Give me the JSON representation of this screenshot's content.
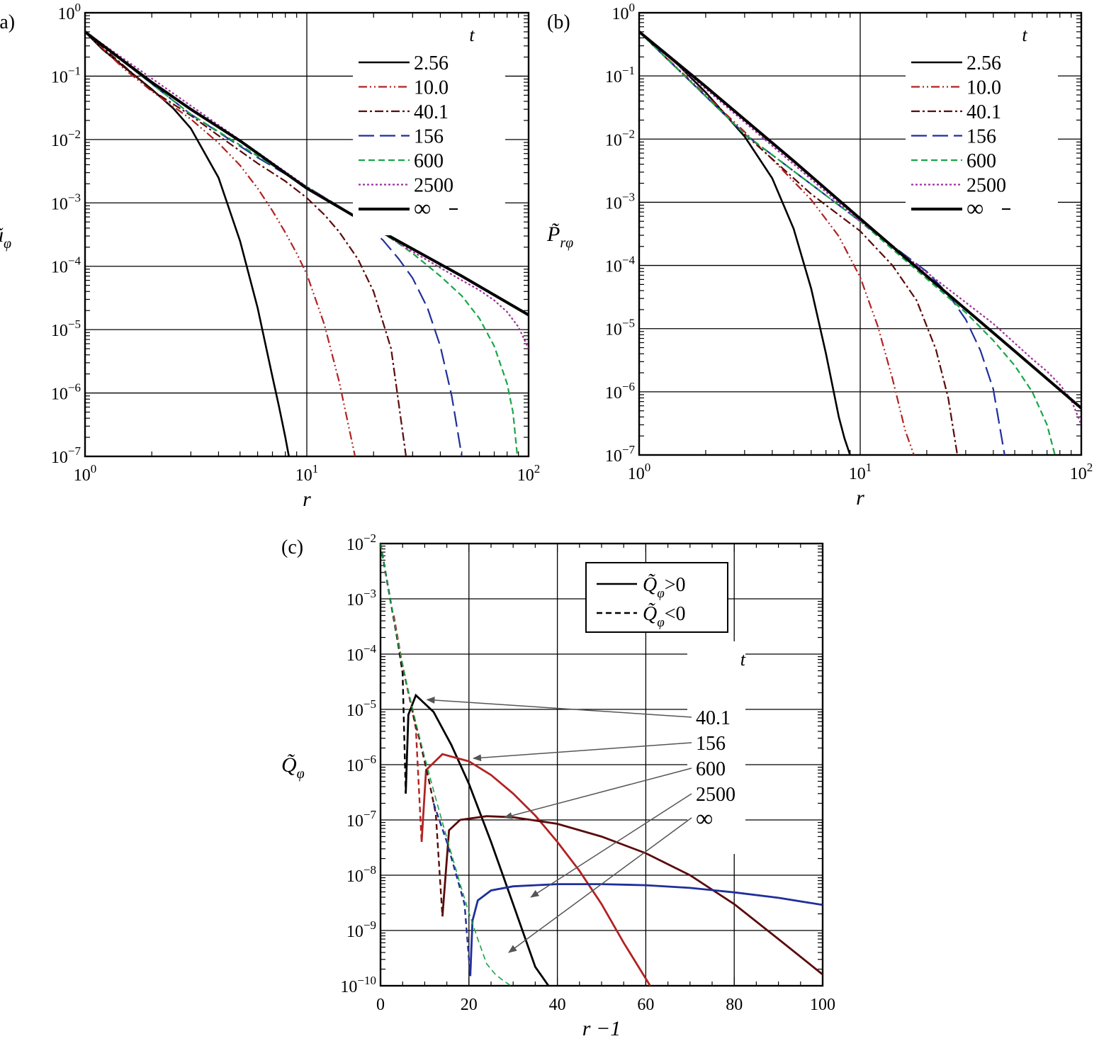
{
  "chart_data": [
    {
      "panel": "(a)",
      "type": "line",
      "xlabel": "r",
      "ylabel": "ũ",
      "ylabel_sub": "φ",
      "xscale": "log",
      "yscale": "log",
      "xlim": [
        1,
        100
      ],
      "ylim": [
        1e-07,
        1
      ],
      "xticks": [
        {
          "v": 1,
          "base": "10",
          "exp": "0"
        },
        {
          "v": 10,
          "base": "10",
          "exp": "1"
        },
        {
          "v": 100,
          "base": "10",
          "exp": "2"
        }
      ],
      "yticks": [
        {
          "v": 1,
          "base": "10",
          "exp": "0"
        },
        {
          "v": 0.1,
          "base": "10",
          "exp": "−1"
        },
        {
          "v": 0.01,
          "base": "10",
          "exp": "−2"
        },
        {
          "v": 0.001,
          "base": "10",
          "exp": "−3"
        },
        {
          "v": 0.0001,
          "base": "10",
          "exp": "−4"
        },
        {
          "v": 1e-05,
          "base": "10",
          "exp": "−5"
        },
        {
          "v": 1e-06,
          "base": "10",
          "exp": "−6"
        },
        {
          "v": 1e-07,
          "base": "10",
          "exp": "−7"
        }
      ],
      "grid": true,
      "legend": {
        "title": "t",
        "position": "top-right"
      },
      "series": [
        {
          "name": "2.56",
          "color": "#000000",
          "style": "solid",
          "width": 2.6,
          "x": [
            1,
            1.2,
            1.5,
            2,
            2.5,
            3,
            4,
            5,
            6,
            7,
            7.5,
            8,
            8.3
          ],
          "y": [
            0.5,
            0.265,
            0.14,
            0.062,
            0.031,
            0.015,
            0.0025,
            0.00025,
            2.2e-05,
            1.8e-06,
            6e-07,
            2e-07,
            1e-07
          ]
        },
        {
          "name": "10.0",
          "color": "#b22222",
          "style": "dashdotdot",
          "width": 2.2,
          "x": [
            1,
            1.5,
            2,
            3,
            4,
            5,
            6,
            7,
            8,
            9,
            10,
            12,
            14,
            16.5
          ],
          "y": [
            0.5,
            0.13,
            0.058,
            0.021,
            0.0088,
            0.0039,
            0.0017,
            0.00075,
            0.00034,
            0.00016,
            7.5e-05,
            1.2e-05,
            1.5e-06,
            1e-07
          ]
        },
        {
          "name": "40.1",
          "color": "#5a0a0a",
          "style": "dashdot",
          "width": 2.2,
          "x": [
            1,
            2,
            3,
            4,
            6,
            8,
            10,
            12,
            14,
            17,
            20,
            24,
            28
          ],
          "y": [
            0.5,
            0.06,
            0.024,
            0.0115,
            0.0042,
            0.0022,
            0.0012,
            0.00065,
            0.00035,
            0.00013,
            4e-05,
            5e-06,
            1e-07
          ]
        },
        {
          "name": "156",
          "color": "#1f2f9a",
          "style": "longdash",
          "width": 2.2,
          "x": [
            1,
            3,
            6,
            10,
            14,
            18,
            22,
            26,
            30,
            35,
            40,
            45,
            50
          ],
          "y": [
            0.5,
            0.025,
            0.0052,
            0.0018,
            0.00088,
            0.00048,
            0.00026,
            0.00013,
            6.5e-05,
            2.2e-05,
            5.5e-06,
            9e-07,
            1e-07
          ]
        },
        {
          "name": "600",
          "color": "#1aa54a",
          "style": "dash",
          "width": 2.2,
          "x": [
            1,
            3,
            10,
            20,
            25,
            30,
            40,
            50,
            60,
            70,
            80,
            85,
            89
          ],
          "y": [
            0.5,
            0.025,
            0.0018,
            0.00041,
            0.00025,
            0.00016,
            7e-05,
            3.4e-05,
            1.5e-05,
            5.5e-06,
            1.4e-06,
            5e-07,
            1e-07
          ]
        },
        {
          "name": "2500",
          "color": "#a0309c",
          "style": "dot",
          "width": 2.2,
          "x": [
            1,
            10,
            30,
            50,
            60,
            70,
            80,
            90,
            100
          ],
          "y": [
            0.5,
            0.0018,
            0.00017,
            6e-05,
            4.2e-05,
            2.9e-05,
            1.9e-05,
            1.1e-05,
            5e-06
          ]
        },
        {
          "name": "∞",
          "color": "#000000",
          "style": "solid",
          "width": 4,
          "x": [
            1,
            1.5,
            2,
            3,
            5,
            10,
            20,
            50,
            100
          ],
          "y": [
            0.5,
            0.17,
            0.08,
            0.03,
            0.0095,
            0.0017,
            0.00041,
            7e-05,
            1.7e-05
          ]
        }
      ]
    },
    {
      "panel": "(b)",
      "type": "line",
      "xlabel": "r",
      "ylabel": "P̃",
      "ylabel_sub": "rφ",
      "xscale": "log",
      "yscale": "log",
      "xlim": [
        1,
        100
      ],
      "ylim": [
        1e-07,
        1
      ],
      "xticks": [
        {
          "v": 1,
          "base": "10",
          "exp": "0"
        },
        {
          "v": 10,
          "base": "10",
          "exp": "1"
        },
        {
          "v": 100,
          "base": "10",
          "exp": "2"
        }
      ],
      "yticks": [
        {
          "v": 1,
          "base": "10",
          "exp": "0"
        },
        {
          "v": 0.1,
          "base": "10",
          "exp": "−1"
        },
        {
          "v": 0.01,
          "base": "10",
          "exp": "−2"
        },
        {
          "v": 0.001,
          "base": "10",
          "exp": "−3"
        },
        {
          "v": 0.0001,
          "base": "10",
          "exp": "−4"
        },
        {
          "v": 1e-05,
          "base": "10",
          "exp": "−5"
        },
        {
          "v": 1e-06,
          "base": "10",
          "exp": "−6"
        },
        {
          "v": 1e-07,
          "base": "10",
          "exp": "−7"
        }
      ],
      "grid": true,
      "legend": {
        "title": "t",
        "position": "top-right"
      },
      "series": [
        {
          "name": "2.56",
          "color": "#000000",
          "style": "solid",
          "width": 2.6,
          "x": [
            1,
            1.5,
            2,
            3,
            4,
            5,
            6,
            7,
            8,
            8.5,
            9
          ],
          "y": [
            0.5,
            0.15,
            0.055,
            0.011,
            0.0024,
            0.00038,
            4.3e-05,
            4e-06,
            4e-07,
            1.8e-07,
            1e-07
          ]
        },
        {
          "name": "10.0",
          "color": "#b22222",
          "style": "dashdotdot",
          "width": 2.2,
          "x": [
            1,
            2,
            3,
            4,
            6,
            8,
            10,
            12,
            14,
            16,
            17.5
          ],
          "y": [
            0.5,
            0.05,
            0.013,
            0.0048,
            0.0011,
            0.00029,
            6.5e-05,
            1.1e-05,
            1.6e-06,
            2.4e-07,
            1e-07
          ]
        },
        {
          "name": "40.1",
          "color": "#5a0a0a",
          "style": "dashdot",
          "width": 2.2,
          "x": [
            1,
            3,
            6,
            10,
            14,
            18,
            22,
            25,
            27.5
          ],
          "y": [
            0.5,
            0.012,
            0.00135,
            0.00035,
            0.0001,
            2.8e-05,
            4.7e-06,
            8e-07,
            1e-07
          ]
        },
        {
          "name": "156",
          "color": "#1f2f9a",
          "style": "longdash",
          "width": 2.2,
          "x": [
            1,
            3,
            10,
            20,
            25,
            30,
            35,
            40,
            45
          ],
          "y": [
            0.5,
            0.012,
            0.0005,
            8e-05,
            3.5e-05,
            1.4e-05,
            4.5e-06,
            1.1e-06,
            1e-07
          ]
        },
        {
          "name": "600",
          "color": "#1aa54a",
          "style": "dash",
          "width": 2.2,
          "x": [
            1,
            3,
            10,
            30,
            40,
            50,
            60,
            70,
            76
          ],
          "y": [
            0.5,
            0.012,
            0.0005,
            1.8e-05,
            6.5e-06,
            2.6e-06,
            1e-06,
            3e-07,
            1e-07
          ]
        },
        {
          "name": "2500",
          "color": "#a0309c",
          "style": "dot",
          "width": 2.2,
          "x": [
            1,
            10,
            40,
            60,
            70,
            80,
            90,
            100
          ],
          "y": [
            0.5,
            0.0005,
            1.2e-05,
            3.3e-06,
            2.1e-06,
            1.3e-06,
            7.5e-07,
            3e-07
          ]
        },
        {
          "name": "∞",
          "color": "#000000",
          "style": "solid",
          "width": 4,
          "x": [
            1,
            2,
            5,
            10,
            20,
            50,
            100
          ],
          "y": [
            0.5,
            0.068,
            0.0045,
            0.00055,
            6.8e-05,
            4.4e-06,
            5.5e-07
          ]
        }
      ]
    },
    {
      "panel": "(c)",
      "type": "line",
      "xlabel": "r −1",
      "ylabel": "Q̃",
      "ylabel_sub": "φ",
      "xscale": "linear",
      "yscale": "log",
      "xlim": [
        0,
        100
      ],
      "ylim": [
        1e-10,
        0.01
      ],
      "xticks": [
        {
          "v": 0,
          "label": "0"
        },
        {
          "v": 20,
          "label": "20"
        },
        {
          "v": 40,
          "label": "40"
        },
        {
          "v": 60,
          "label": "60"
        },
        {
          "v": 80,
          "label": "80"
        },
        {
          "v": 100,
          "label": "100"
        }
      ],
      "yticks": [
        {
          "v": 0.01,
          "base": "10",
          "exp": "−2"
        },
        {
          "v": 0.001,
          "base": "10",
          "exp": "−3"
        },
        {
          "v": 0.0001,
          "base": "10",
          "exp": "−4"
        },
        {
          "v": 1e-05,
          "base": "10",
          "exp": "−5"
        },
        {
          "v": 1e-06,
          "base": "10",
          "exp": "−6"
        },
        {
          "v": 1e-07,
          "base": "10",
          "exp": "−7"
        },
        {
          "v": 1e-08,
          "base": "10",
          "exp": "−8"
        },
        {
          "v": 1e-09,
          "base": "10",
          "exp": "−9"
        },
        {
          "v": 1e-10,
          "base": "10",
          "exp": "−10"
        }
      ],
      "grid": true,
      "legend": {
        "position": "top-right",
        "entries": [
          {
            "sym": "Q̃",
            "sub": "φ",
            "rel": ">0",
            "style": "solid"
          },
          {
            "sym": "Q̃",
            "sub": "φ",
            "rel": "<0",
            "style": "dash"
          }
        ]
      },
      "annotations": {
        "title": "t",
        "labels": [
          "40.1",
          "156",
          "600",
          "2500",
          "∞"
        ],
        "arrow_targets": [
          {
            "x": 10.5,
            "y": 1.5e-05
          },
          {
            "x": 21,
            "y": 1.3e-06
          },
          {
            "x": 28,
            "y": 1.1e-07
          },
          {
            "x": 34,
            "y": 4e-09
          },
          {
            "x": 29,
            "y": 4e-10
          }
        ]
      },
      "series": [
        {
          "name": "40.1",
          "color": "#000000",
          "neg": {
            "x": [
              0,
              2,
              4,
              5,
              5.7
            ],
            "y": [
              0.01,
              0.0012,
              0.00015,
              4.5e-05,
              3e-07
            ]
          },
          "pos": {
            "x": [
              5.7,
              6.3,
              8,
              12,
              16,
              20,
              25,
              30,
              35,
              38
            ],
            "y": [
              3e-07,
              8e-06,
              1.8e-05,
              9e-06,
              2.3e-06,
              4.5e-07,
              4e-08,
              3e-09,
              2.2e-10,
              1e-10
            ]
          }
        },
        {
          "name": "156",
          "color": "#b22222",
          "neg": {
            "x": [
              3,
              5,
              7,
              8,
              9.3
            ],
            "y": [
              0.0005,
              6e-05,
              1.1e-05,
              4.5e-06,
              4e-08
            ]
          },
          "pos": {
            "x": [
              9.3,
              10.3,
              14,
              20,
              25,
              30,
              35,
              40,
              45,
              50,
              55,
              61
            ],
            "y": [
              4e-08,
              8e-07,
              1.55e-06,
              1.15e-06,
              6.5e-07,
              3e-07,
              1.2e-07,
              4e-08,
              1.2e-08,
              3e-09,
              6e-10,
              1e-10
            ]
          }
        },
        {
          "name": "600",
          "color": "#5a0a0a",
          "neg": {
            "x": [
              7,
              9,
              11,
              12.5,
              14
            ],
            "y": [
              1.1e-05,
              2.5e-06,
              5e-07,
              1.3e-07,
              1.8e-09
            ]
          },
          "pos": {
            "x": [
              14,
              15.5,
              18,
              24,
              30,
              40,
              50,
              60,
              70,
              80,
              90,
              100
            ],
            "y": [
              1.8e-09,
              6.5e-08,
              1e-07,
              1.17e-07,
              1.12e-07,
              8.5e-08,
              5e-08,
              2.5e-08,
              1e-08,
              3e-09,
              7e-10,
              1.6e-10
            ]
          }
        },
        {
          "name": "2500",
          "color": "#1f2f9a",
          "neg": {
            "x": [
              12,
              15,
              17,
              19,
              20.3
            ],
            "y": [
              2e-07,
              4e-08,
              1.1e-08,
              3e-09,
              1.5e-10
            ]
          },
          "pos": {
            "x": [
              20.3,
              20.8,
              22,
              25,
              30,
              40,
              50,
              60,
              70,
              80,
              90,
              100
            ],
            "y": [
              1.5e-10,
              1.5e-09,
              3.5e-09,
              5.3e-09,
              6.3e-09,
              6.9e-09,
              6.9e-09,
              6.6e-09,
              5.9e-09,
              4.9e-09,
              3.9e-09,
              2.9e-09
            ]
          }
        },
        {
          "name": "∞",
          "color": "#1aa54a",
          "neg": {
            "x": [
              0,
              2,
              4,
              6,
              8,
              10,
              12,
              14,
              16,
              18,
              20,
              22,
              24,
              26,
              28,
              29.5
            ],
            "y": [
              0.01,
              0.0012,
              0.00016,
              2.8e-05,
              5.8e-06,
              1.35e-06,
              3.4e-07,
              9e-08,
              2.5e-08,
              7e-09,
              2.1e-09,
              7e-10,
              2.5e-10,
              1.6e-10,
              1.2e-10,
              1e-10
            ]
          }
        }
      ]
    }
  ]
}
